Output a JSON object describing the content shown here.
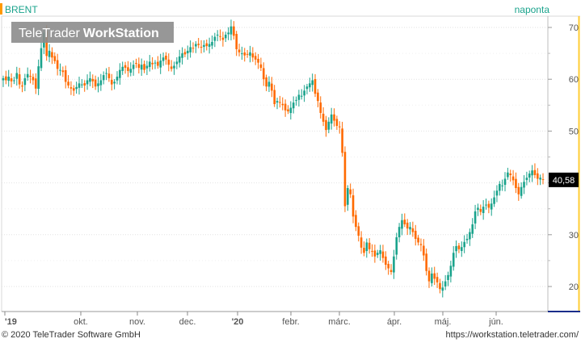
{
  "header": {
    "symbol": "BRENT",
    "interval": "naponta",
    "watermark_brand": "TeleTrader",
    "watermark_product": "WorkStation"
  },
  "price_box": {
    "value": "40,58"
  },
  "footer": {
    "copyright": "© 2020 TeleTrader Software GmbH",
    "url": "https://workstation.teletrader.com/"
  },
  "colors": {
    "up": "#1aa38c",
    "down": "#ff6a00",
    "accent_bar": "#ff9900",
    "frame": "#ffcc33",
    "axis_line": "#1a2d8a"
  },
  "chart_data": {
    "type": "candlestick",
    "title": "BRENT",
    "interval": "naponta",
    "y_ticks": [
      20,
      30,
      40,
      50,
      60,
      70
    ],
    "ylim": [
      15,
      73
    ],
    "x_ticks": [
      "'19",
      "okt.",
      "nov.",
      "dec.",
      "'20",
      "febr.",
      "márc.",
      "ápr.",
      "máj.",
      "jún."
    ],
    "last_price": 40.58,
    "grid": true,
    "series": [
      {
        "name": "BRENT",
        "values": [
          60.2,
          59.8,
          60.5,
          59.6,
          59.8,
          61.2,
          59.0,
          58.6,
          60.2,
          61.0,
          60.5,
          59.8,
          58.2,
          62.5,
          66.0,
          69.0,
          64.5,
          65.5,
          64.2,
          63.5,
          62.0,
          61.8,
          61.4,
          59.5,
          58.8,
          58.2,
          57.8,
          58.5,
          59.2,
          59.0,
          58.8,
          59.8,
          60.2,
          59.6,
          58.6,
          59.2,
          59.8,
          60.8,
          61.2,
          60.2,
          59.0,
          59.5,
          60.5,
          61.8,
          62.4,
          62.2,
          61.6,
          62.0,
          62.8,
          63.0,
          62.2,
          62.8,
          61.8,
          62.6,
          63.4,
          62.9,
          63.2,
          62.6,
          63.6,
          64.2,
          63.8,
          62.8,
          62.0,
          62.6,
          63.4,
          64.4,
          65.0,
          64.8,
          65.5,
          66.2,
          66.0,
          66.8,
          66.6,
          66.2,
          66.6,
          66.4,
          66.8,
          67.2,
          68.2,
          68.6,
          68.2,
          67.6,
          68.6,
          69.0,
          70.2,
          68.4,
          65.8,
          65.2,
          65.0,
          64.6,
          64.8,
          65.2,
          64.2,
          63.8,
          63.2,
          62.2,
          60.0,
          58.6,
          59.5,
          57.8,
          55.2,
          55.8,
          55.5,
          55.0,
          54.0,
          53.8,
          54.5,
          55.5,
          56.0,
          57.0,
          56.8,
          57.8,
          58.6,
          59.2,
          59.8,
          57.2,
          55.8,
          53.5,
          51.8,
          50.2,
          51.8,
          53.2,
          52.0,
          51.0,
          50.8,
          45.8,
          35.5,
          39.0,
          37.8,
          33.5,
          31.5,
          29.8,
          27.5,
          26.5,
          28.5,
          27.2,
          26.8,
          25.8,
          26.5,
          27.0,
          25.5,
          24.2,
          23.5,
          22.8,
          25.8,
          29.5,
          31.5,
          32.8,
          32.0,
          31.2,
          31.5,
          30.5,
          29.2,
          28.5,
          28.0,
          26.0,
          23.0,
          21.0,
          22.5,
          21.5,
          20.8,
          19.5,
          19.8,
          21.0,
          22.2,
          24.0,
          26.5,
          27.8,
          27.2,
          27.6,
          28.6,
          29.2,
          30.5,
          32.0,
          34.5,
          35.2,
          34.4,
          35.4,
          35.8,
          35.2,
          36.0,
          37.2,
          38.5,
          39.8,
          39.5,
          40.8,
          42.0,
          41.5,
          40.5,
          39.0,
          37.8,
          39.2,
          40.2,
          41.0,
          41.8,
          42.4,
          41.5,
          40.8,
          41.0,
          40.58
        ]
      }
    ]
  }
}
